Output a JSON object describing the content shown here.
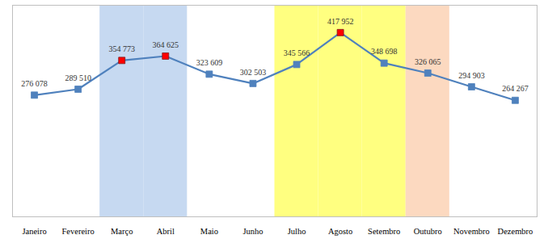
{
  "chart_data": {
    "type": "line",
    "categories": [
      "Janeiro",
      "Fevereiro",
      "Março",
      "Abril",
      "Maio",
      "Junho",
      "Julho",
      "Agosto",
      "Setembro",
      "Outubro",
      "Novembro",
      "Dezembro"
    ],
    "values": [
      276078,
      289510,
      354773,
      364625,
      323609,
      302503,
      345566,
      417952,
      348698,
      326065,
      294903,
      264267
    ],
    "value_labels": [
      "276 078",
      "289 510",
      "354 773",
      "364 625",
      "323 609",
      "302 503",
      "345 566",
      "417 952",
      "348 698",
      "326 065",
      "294 903",
      "264 267"
    ],
    "color": "#4f81bd",
    "colors": [
      "#4f81bd",
      "#4f81bd",
      "#ff0000",
      "#ff0000",
      "#4f81bd",
      "#4f81bd",
      "#4f81bd",
      "#ff0000",
      "#4f81bd",
      "#4f81bd",
      "#4f81bd",
      "#4f81bd"
    ],
    "marker": "square",
    "bands": [
      {
        "categories": [
          "Março",
          "Abril"
        ],
        "color": "#c6d9f1"
      },
      {
        "categories": [
          "Julho",
          "Agosto",
          "Setembro"
        ],
        "color": "#ffff80"
      },
      {
        "categories": [
          "Outubro"
        ],
        "color": "#fcd9c0"
      }
    ],
    "ylim": [
      0,
      480000
    ],
    "yticks": [],
    "grid": false,
    "data_labels": true,
    "tick_labels": "x"
  }
}
